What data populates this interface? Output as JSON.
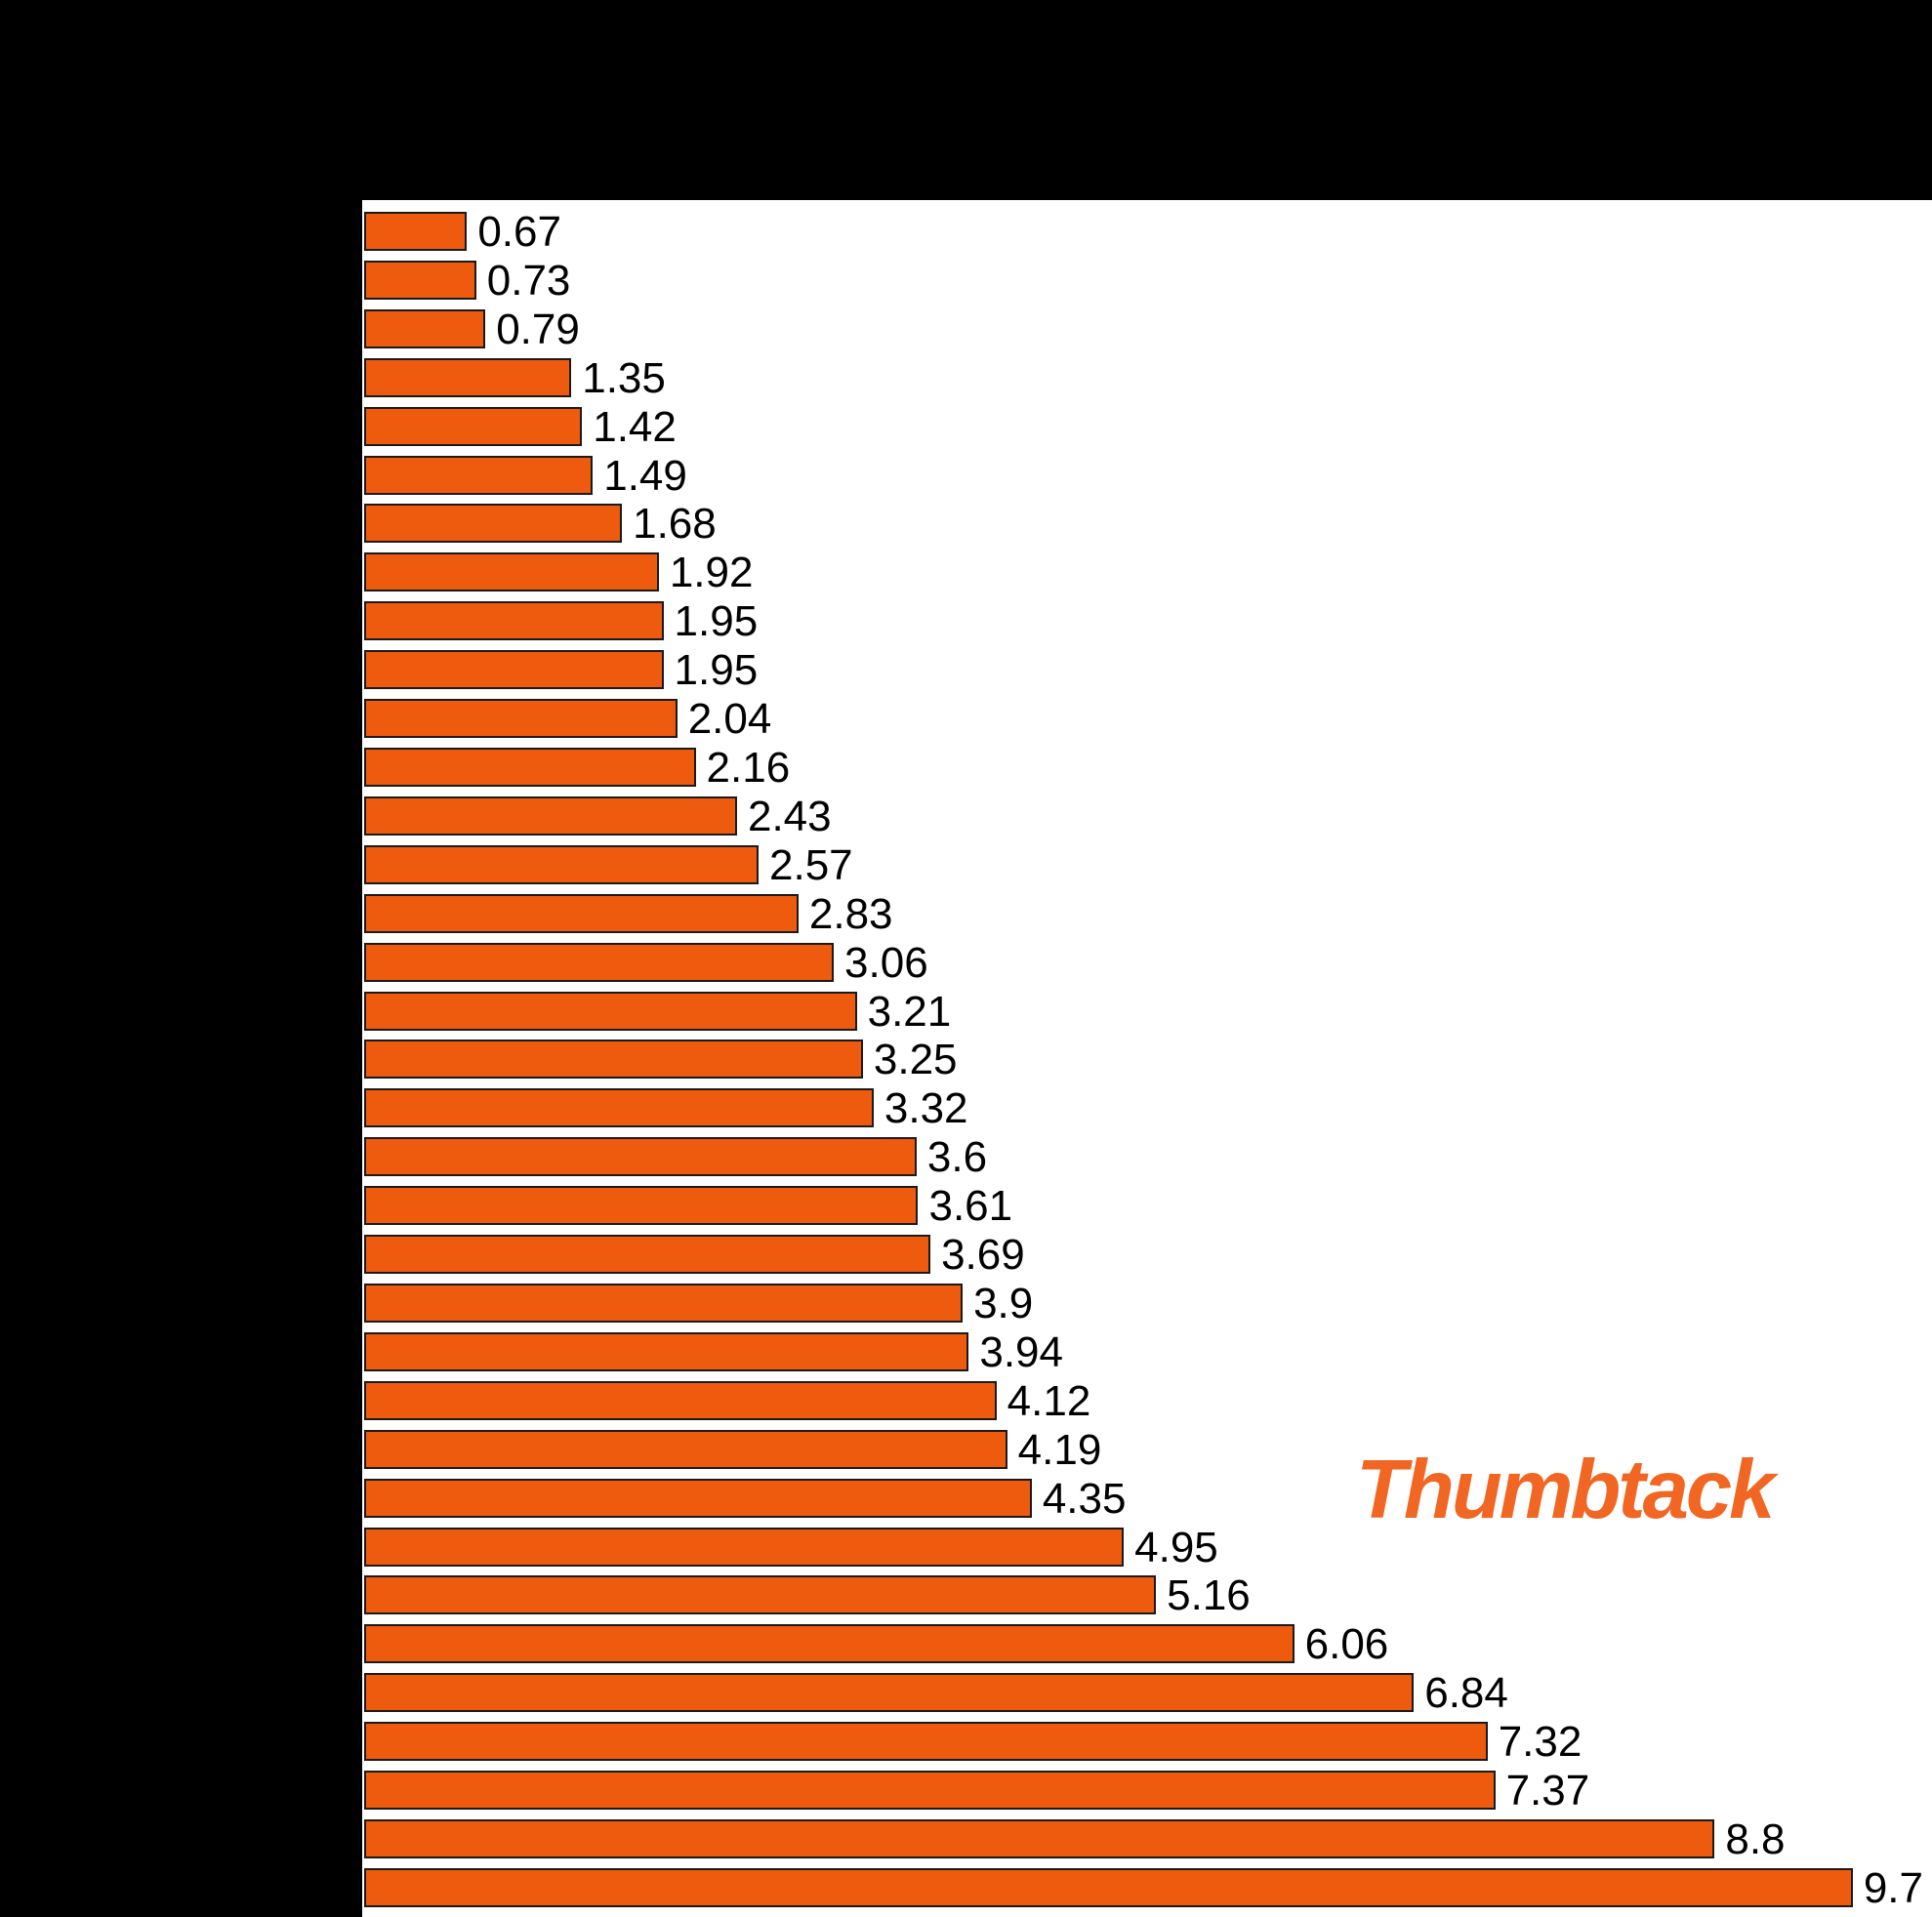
{
  "branding": {
    "logo_text": "Thumbtack",
    "logo_color": "#F16623"
  },
  "colors": {
    "background": "#000000",
    "plot_background": "#FFFFFF",
    "bar_fill": "#EE5A0E",
    "bar_outline": "#1A1A1A",
    "label_color": "#000000"
  },
  "chart_data": {
    "type": "bar",
    "orientation": "horizontal",
    "values": [
      0.67,
      0.73,
      0.79,
      1.35,
      1.42,
      1.49,
      1.68,
      1.92,
      1.95,
      1.95,
      2.04,
      2.16,
      2.43,
      2.57,
      2.83,
      3.06,
      3.21,
      3.25,
      3.32,
      3.6,
      3.61,
      3.69,
      3.9,
      3.94,
      4.12,
      4.19,
      4.35,
      4.95,
      5.16,
      6.06,
      6.84,
      7.32,
      7.37,
      8.8,
      9.7
    ],
    "bar_labels": [
      "0.67",
      "0.73",
      "0.79",
      "1.35",
      "1.42",
      "1.49",
      "1.68",
      "1.92",
      "1.95",
      "1.95",
      "2.04",
      "2.16",
      "2.43",
      "2.57",
      "2.83",
      "3.06",
      "3.21",
      "3.25",
      "3.32",
      "3.6",
      "3.61",
      "3.69",
      "3.9",
      "3.94",
      "4.12",
      "4.19",
      "4.35",
      "4.95",
      "5.16",
      "6.06",
      "6.84",
      "7.32",
      "7.37",
      "8.8",
      "9.7"
    ],
    "value_labels_shown": true,
    "grid": "off",
    "xlim": [
      0,
      10.2
    ],
    "category_labels_visible": false,
    "title_visible": false,
    "bar_count": 35
  }
}
